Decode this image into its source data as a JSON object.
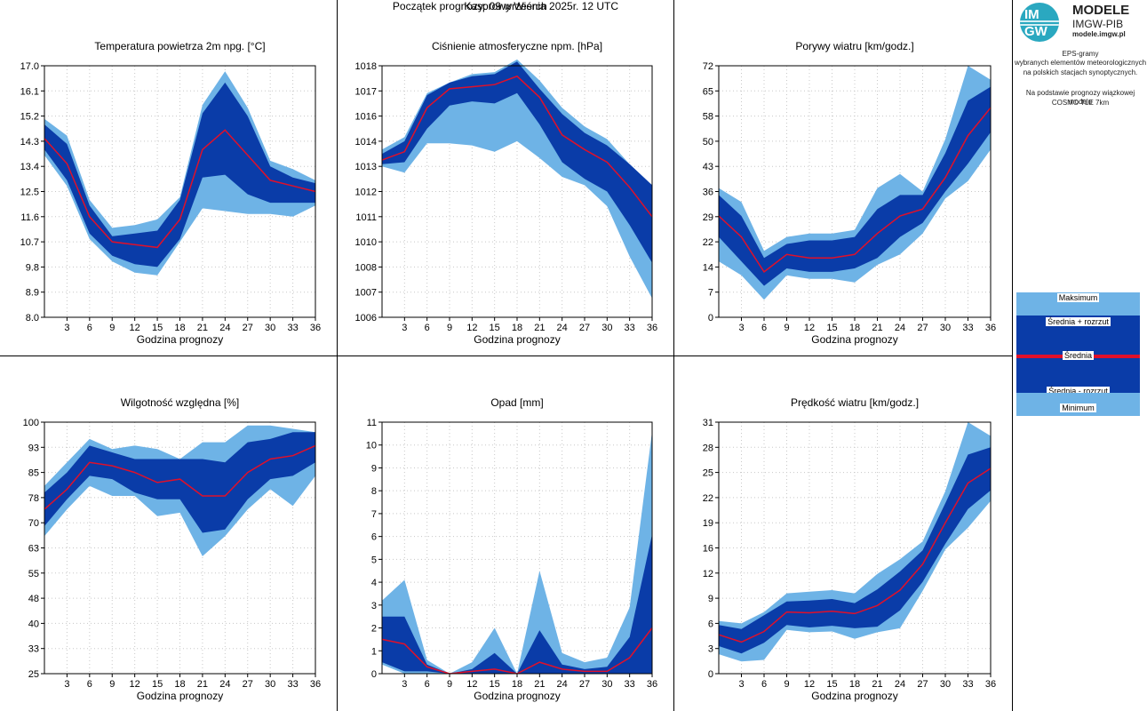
{
  "header": {
    "station": "Kasprowy Wierch",
    "start": "Początek prognozy: 09 września 2025r. 12 UTC"
  },
  "colors": {
    "outer": "#6eb3e6",
    "inner": "#0a3ca8",
    "mean": "#e0102a"
  },
  "sidebar": {
    "logo_top": "IM",
    "logo_bottom": "GW",
    "modele": "MODELE",
    "imgwpib": "IMGW-PIB",
    "url": "modele.imgw.pl",
    "desc1_line1": "EPS-gramy",
    "desc1_line2": "wybranych elementów meteorologicznych",
    "desc1_line3": "na polskich stacjach  synoptycznych.",
    "desc2_line1": "Na podstawie prognozy wiązkowej modelu",
    "desc2_line2": "COSMO TLE 7km"
  },
  "legend": {
    "max": "Maksimum",
    "mean_plus": "Średnia + rozrzut",
    "mean": "Średnia",
    "mean_minus": "Średnia - rozrzut",
    "min": "Minimum"
  },
  "chart_data": [
    {
      "type": "area",
      "title": "Temperatura powietrza 2m npg. [°C]",
      "xlabel": "Godzina prognozy",
      "x": [
        0,
        3,
        6,
        9,
        12,
        15,
        18,
        21,
        24,
        27,
        30,
        33,
        36
      ],
      "xticks": [
        "3",
        "6",
        "9",
        "12",
        "15",
        "18",
        "21",
        "24",
        "27",
        "30",
        "33",
        "36"
      ],
      "ylim": [
        8.0,
        17.0
      ],
      "yticks": [
        "8.0",
        "8.9",
        "9.8",
        "10.7",
        "11.6",
        "12.5",
        "13.4",
        "14.3",
        "15.2",
        "16.1",
        "17.0"
      ],
      "series": [
        {
          "name": "Maksimum",
          "values": [
            15.1,
            14.5,
            12.2,
            11.2,
            11.3,
            11.5,
            12.3,
            15.6,
            16.8,
            15.5,
            13.6,
            13.3,
            12.9
          ]
        },
        {
          "name": "Średnia + rozrzut",
          "values": [
            14.9,
            14.2,
            12.0,
            10.9,
            11.0,
            11.1,
            12.2,
            15.3,
            16.4,
            15.2,
            13.4,
            13.0,
            12.8
          ]
        },
        {
          "name": "Średnia",
          "values": [
            14.4,
            13.5,
            11.6,
            10.7,
            10.6,
            10.5,
            11.5,
            14.0,
            14.7,
            13.8,
            12.9,
            12.7,
            12.5
          ]
        },
        {
          "name": "Średnia - rozrzut",
          "values": [
            14.0,
            12.9,
            11.0,
            10.2,
            9.9,
            9.8,
            10.8,
            13.0,
            13.1,
            12.4,
            12.1,
            12.1,
            12.1
          ]
        },
        {
          "name": "Minimum",
          "values": [
            13.8,
            12.7,
            10.8,
            10.0,
            9.6,
            9.5,
            10.7,
            11.9,
            11.8,
            11.7,
            11.7,
            11.6,
            12.0
          ]
        }
      ]
    },
    {
      "type": "area",
      "title": "Ciśnienie atmosferyczne npm. [hPa]",
      "xlabel": "Godzina prognozy",
      "x": [
        0,
        3,
        6,
        9,
        12,
        15,
        18,
        21,
        24,
        27,
        30,
        33,
        36
      ],
      "xticks": [
        "3",
        "6",
        "9",
        "12",
        "15",
        "18",
        "21",
        "24",
        "27",
        "30",
        "33",
        "36"
      ],
      "ylim": [
        1006,
        1018
      ],
      "yticks": [
        "1006",
        "1007",
        "1008",
        "1010",
        "1011",
        "1012",
        "1013",
        "1014",
        "1016",
        "1017",
        "1018"
      ],
      "series": [
        {
          "name": "Maksimum",
          "values": [
            1014.0,
            1014.6,
            1016.7,
            1017.2,
            1017.6,
            1017.7,
            1018.3,
            1017.3,
            1016.0,
            1015.1,
            1014.5,
            1013.3,
            1012.3
          ]
        },
        {
          "name": "Średnia + rozrzut",
          "values": [
            1013.8,
            1014.4,
            1016.6,
            1017.2,
            1017.5,
            1017.6,
            1018.2,
            1016.9,
            1015.7,
            1014.8,
            1014.2,
            1013.3,
            1012.3
          ]
        },
        {
          "name": "Średnia",
          "values": [
            1013.5,
            1013.9,
            1016.0,
            1016.9,
            1017.0,
            1017.1,
            1017.5,
            1016.5,
            1014.7,
            1014.0,
            1013.4,
            1012.2,
            1010.8
          ]
        },
        {
          "name": "Średnia - rozrzut",
          "values": [
            1013.3,
            1013.4,
            1015.0,
            1016.1,
            1016.3,
            1016.2,
            1016.7,
            1015.2,
            1013.4,
            1012.6,
            1012.0,
            1010.4,
            1008.6
          ]
        },
        {
          "name": "Minimum",
          "values": [
            1013.2,
            1012.9,
            1014.3,
            1014.3,
            1014.2,
            1013.9,
            1014.4,
            1013.6,
            1012.7,
            1012.3,
            1011.3,
            1008.9,
            1006.9
          ]
        }
      ]
    },
    {
      "type": "area",
      "title": "Porywy wiatru [km/godz.]",
      "xlabel": "Godzina prognozy",
      "x": [
        0,
        3,
        6,
        9,
        12,
        15,
        18,
        21,
        24,
        27,
        30,
        33,
        36
      ],
      "xticks": [
        "3",
        "6",
        "9",
        "12",
        "15",
        "18",
        "21",
        "24",
        "27",
        "30",
        "33",
        "36"
      ],
      "ylim": [
        0,
        72
      ],
      "yticks": [
        "0",
        "7",
        "14",
        "22",
        "29",
        "36",
        "43",
        "50",
        "58",
        "65",
        "72"
      ],
      "series": [
        {
          "name": "Maksimum",
          "values": [
            37,
            33,
            19,
            23,
            24,
            24,
            25,
            37,
            41,
            36,
            51,
            72,
            68
          ]
        },
        {
          "name": "Średnia + rozrzut",
          "values": [
            35,
            29,
            17,
            21,
            22,
            22,
            23,
            31,
            35,
            35,
            47,
            62,
            66
          ]
        },
        {
          "name": "Średnia",
          "values": [
            29,
            23,
            13,
            18,
            17,
            17,
            18,
            24,
            29,
            31,
            40,
            52,
            60
          ]
        },
        {
          "name": "Średnia - rozrzut",
          "values": [
            23,
            16,
            9,
            14,
            13,
            13,
            14,
            17,
            23,
            27,
            36,
            44,
            53
          ]
        },
        {
          "name": "Minimum",
          "values": [
            16,
            12,
            5,
            12,
            11,
            11,
            10,
            15,
            18,
            24,
            34,
            39,
            48
          ]
        }
      ]
    },
    {
      "type": "area",
      "title": "Wilgotność względna [%]",
      "xlabel": "Godzina prognozy",
      "x": [
        0,
        3,
        6,
        9,
        12,
        15,
        18,
        21,
        24,
        27,
        30,
        33,
        36
      ],
      "xticks": [
        "3",
        "6",
        "9",
        "12",
        "15",
        "18",
        "21",
        "24",
        "27",
        "30",
        "33",
        "36"
      ],
      "ylim": [
        25,
        100
      ],
      "yticks": [
        "25",
        "33",
        "40",
        "48",
        "55",
        "63",
        "70",
        "78",
        "85",
        "93",
        "100"
      ],
      "series": [
        {
          "name": "Maksimum",
          "values": [
            81,
            88,
            95,
            92,
            93,
            92,
            89,
            94,
            94,
            99,
            99,
            98,
            97
          ]
        },
        {
          "name": "Średnia + rozrzut",
          "values": [
            79,
            85,
            93,
            91,
            89,
            89,
            89,
            89,
            88,
            94,
            95,
            97,
            97
          ]
        },
        {
          "name": "Średnia",
          "values": [
            74,
            80,
            88,
            87,
            85,
            82,
            83,
            78,
            78,
            85,
            89,
            90,
            93
          ]
        },
        {
          "name": "Średnia - rozrzut",
          "values": [
            69,
            77,
            84,
            83,
            79,
            77,
            77,
            67,
            68,
            77,
            83,
            84,
            88
          ]
        },
        {
          "name": "Minimum",
          "values": [
            66,
            74,
            81,
            78,
            78,
            72,
            73,
            60,
            66,
            74,
            80,
            75,
            84
          ]
        }
      ]
    },
    {
      "type": "area",
      "title": "Opad [mm]",
      "xlabel": "Godzina prognozy",
      "x": [
        0,
        3,
        6,
        9,
        12,
        15,
        18,
        21,
        24,
        27,
        30,
        33,
        36
      ],
      "xticks": [
        "3",
        "6",
        "9",
        "12",
        "15",
        "18",
        "21",
        "24",
        "27",
        "30",
        "33",
        "36"
      ],
      "ylim": [
        0,
        11
      ],
      "yticks": [
        "0",
        "1",
        "2",
        "3",
        "4",
        "5",
        "6",
        "7",
        "8",
        "9",
        "10",
        "11"
      ],
      "series": [
        {
          "name": "Maksimum",
          "values": [
            3.2,
            4.1,
            0.6,
            0.0,
            0.5,
            2.0,
            0.0,
            4.5,
            0.9,
            0.5,
            0.7,
            2.9,
            10.6
          ]
        },
        {
          "name": "Średnia + rozrzut",
          "values": [
            2.5,
            2.5,
            0.4,
            0.0,
            0.2,
            0.9,
            0.0,
            1.9,
            0.4,
            0.2,
            0.3,
            1.6,
            6.1
          ]
        },
        {
          "name": "Średnia",
          "values": [
            1.5,
            1.3,
            0.3,
            0.0,
            0.1,
            0.2,
            0.0,
            0.5,
            0.2,
            0.1,
            0.1,
            0.7,
            2.0
          ]
        },
        {
          "name": "Średnia - rozrzut",
          "values": [
            0.5,
            0.1,
            0.1,
            0.0,
            0.0,
            0.0,
            0.0,
            0.0,
            0.0,
            0.0,
            0.0,
            0.0,
            0.0
          ]
        },
        {
          "name": "Minimum",
          "values": [
            0.4,
            0.0,
            0.0,
            0.0,
            0.0,
            0.0,
            0.0,
            0.0,
            0.0,
            0.0,
            0.0,
            0.0,
            0.0
          ]
        }
      ]
    },
    {
      "type": "area",
      "title": "Prędkość wiatru [km/godz.]",
      "xlabel": "Godzina prognozy",
      "x": [
        0,
        3,
        6,
        9,
        12,
        15,
        18,
        21,
        24,
        27,
        30,
        33,
        36
      ],
      "xticks": [
        "3",
        "6",
        "9",
        "12",
        "15",
        "18",
        "21",
        "24",
        "27",
        "30",
        "33",
        "36"
      ],
      "ylim": [
        0,
        31
      ],
      "yticks": [
        "0",
        "3",
        "6",
        "9",
        "12",
        "16",
        "19",
        "22",
        "25",
        "28",
        "31"
      ],
      "series": [
        {
          "name": "Maksimum",
          "values": [
            6.5,
            6.2,
            7.6,
            9.9,
            10.1,
            10.3,
            9.9,
            12.3,
            14.1,
            16.3,
            22.5,
            31.0,
            29.3
          ]
        },
        {
          "name": "Średnia + rozrzut",
          "values": [
            6.0,
            5.5,
            7.2,
            8.9,
            9.0,
            9.2,
            8.7,
            10.4,
            12.6,
            15.2,
            21.0,
            27.0,
            27.9
          ]
        },
        {
          "name": "Średnia",
          "values": [
            4.8,
            3.9,
            5.2,
            7.6,
            7.5,
            7.7,
            7.4,
            8.4,
            10.3,
            13.5,
            18.6,
            23.5,
            25.3
          ]
        },
        {
          "name": "Średnia - rozrzut",
          "values": [
            3.4,
            2.5,
            3.8,
            6.0,
            5.7,
            5.9,
            5.6,
            5.8,
            7.8,
            11.3,
            16.0,
            20.3,
            22.6
          ]
        },
        {
          "name": "Minimum",
          "values": [
            2.4,
            1.5,
            1.7,
            5.4,
            5.1,
            5.2,
            4.3,
            5.1,
            5.6,
            10.2,
            15.3,
            18.0,
            21.3
          ]
        }
      ]
    }
  ]
}
